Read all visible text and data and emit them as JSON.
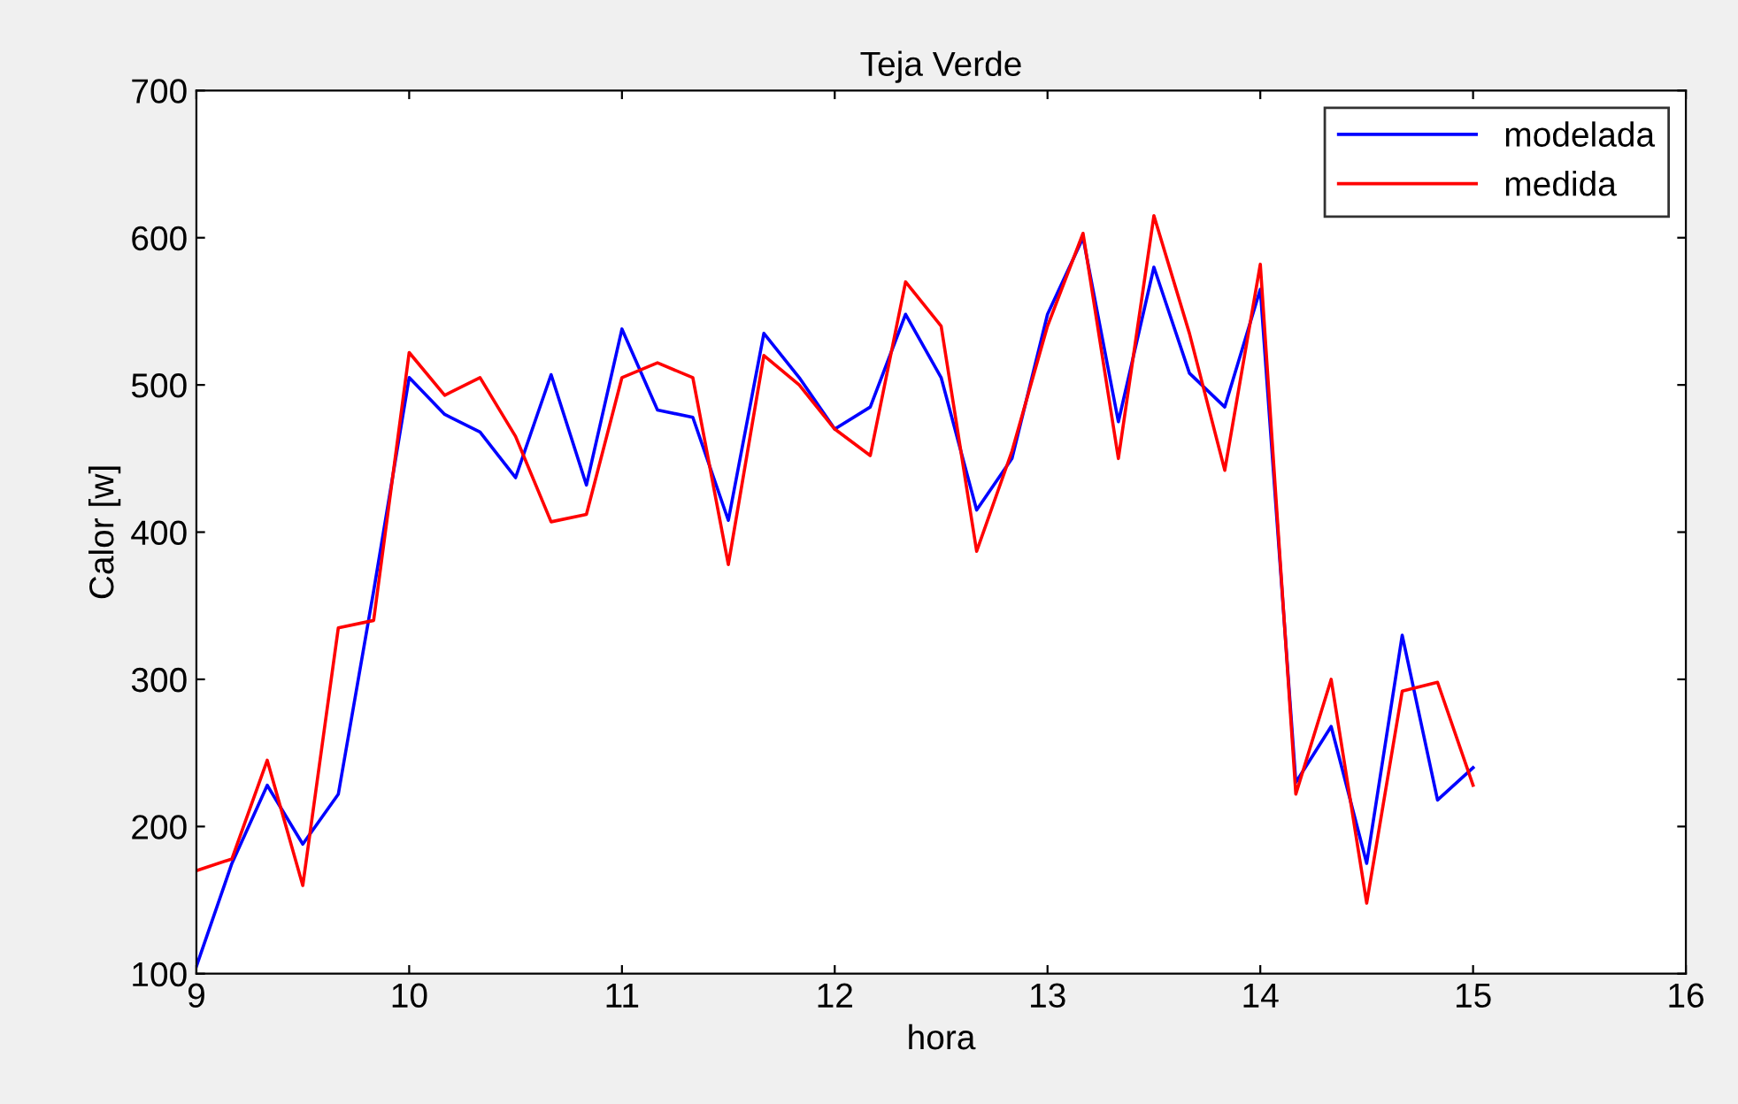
{
  "chart_data": {
    "type": "line",
    "title": "Teja Verde",
    "xlabel": "hora",
    "ylabel": "Calor [w]",
    "x": [
      9,
      9.167,
      9.333,
      9.5,
      9.667,
      9.833,
      10,
      10.167,
      10.333,
      10.5,
      10.667,
      10.833,
      11,
      11.167,
      11.333,
      11.5,
      11.667,
      11.833,
      12,
      12.167,
      12.333,
      12.5,
      12.667,
      12.833,
      13,
      13.167,
      13.333,
      13.5,
      13.667,
      13.833,
      14,
      14.167,
      14.333,
      14.5,
      14.667,
      14.833,
      15
    ],
    "series": [
      {
        "name": "modelada",
        "color": "#0000ff",
        "values": [
          105,
          175,
          228,
          188,
          222,
          360,
          505,
          480,
          468,
          437,
          507,
          432,
          538,
          483,
          478,
          408,
          535,
          505,
          470,
          485,
          548,
          505,
          415,
          450,
          548,
          600,
          475,
          580,
          508,
          485,
          565,
          230,
          268,
          175,
          330,
          218,
          240
        ]
      },
      {
        "name": "medida",
        "color": "#ff0000",
        "values": [
          170,
          178,
          245,
          160,
          335,
          340,
          522,
          493,
          505,
          465,
          407,
          412,
          505,
          515,
          505,
          378,
          520,
          500,
          470,
          452,
          570,
          540,
          387,
          455,
          540,
          603,
          450,
          615,
          535,
          442,
          582,
          222,
          300,
          148,
          292,
          298,
          228
        ]
      }
    ],
    "xlim": [
      9,
      16
    ],
    "xticks": [
      9,
      10,
      11,
      12,
      13,
      14,
      15,
      16
    ],
    "ylim": [
      100,
      700
    ],
    "yticks": [
      100,
      200,
      300,
      400,
      500,
      600,
      700
    ],
    "grid": false,
    "legend": "top right"
  }
}
